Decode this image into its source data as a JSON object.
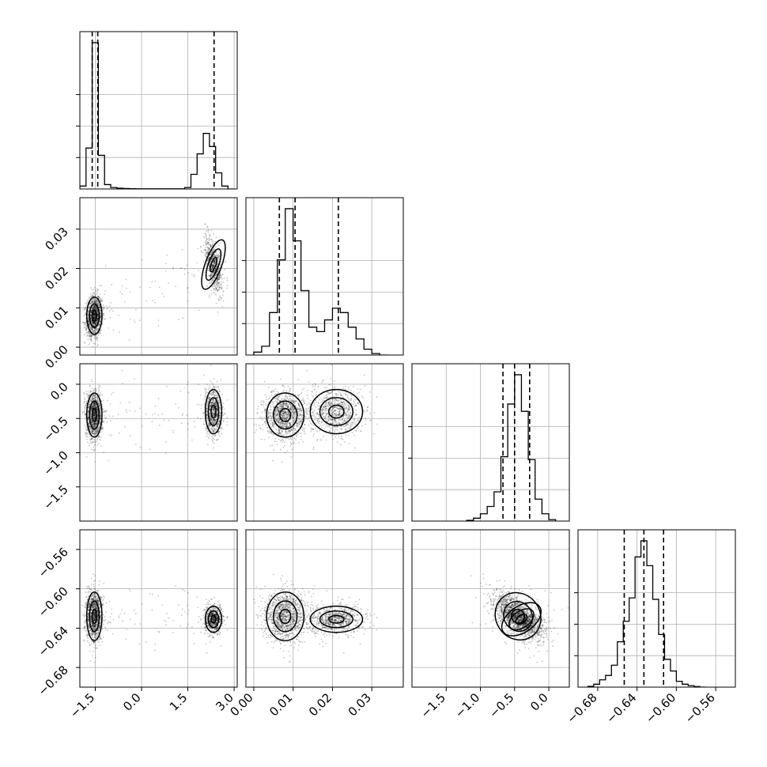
{
  "chart_data": {
    "type": "corner",
    "parameters": 4,
    "quantile_lines": "dashed",
    "grid": true,
    "params": [
      {
        "range": [
          -2.0,
          3.1
        ],
        "ticks": [
          -1.5,
          0.0,
          1.5,
          3.0
        ],
        "tick_labels": [
          "−1.5",
          "0.0",
          "1.5",
          "3.0"
        ],
        "quantiles": [
          -1.6,
          -1.42,
          2.35
        ],
        "hist": {
          "edges": [
            -2.0,
            -1.8,
            -1.6,
            -1.4,
            -1.2,
            -1.0,
            -0.8,
            -0.6,
            -0.4,
            -0.2,
            0.0,
            1.4,
            1.6,
            1.8,
            2.0,
            2.2,
            2.4,
            2.6,
            2.8,
            3.0
          ],
          "values": [
            0.02,
            0.28,
            1.0,
            0.23,
            0.03,
            0.01,
            0.005,
            0.003,
            0.002,
            0.001,
            0.001,
            0.01,
            0.1,
            0.24,
            0.38,
            0.29,
            0.11,
            0.02,
            0.0
          ]
        }
      },
      {
        "range": [
          -0.002,
          0.038
        ],
        "ticks": [
          0.0,
          0.01,
          0.02,
          0.03
        ],
        "tick_labels": [
          "0.00",
          "0.01",
          "0.02",
          "0.03"
        ],
        "quantiles": [
          0.0065,
          0.0105,
          0.0215
        ],
        "hist": {
          "edges": [
            0.0,
            0.002,
            0.004,
            0.006,
            0.008,
            0.01,
            0.012,
            0.014,
            0.016,
            0.018,
            0.02,
            0.022,
            0.024,
            0.026,
            0.028,
            0.03,
            0.032,
            0.034
          ],
          "values": [
            0.02,
            0.06,
            0.29,
            0.65,
            1.0,
            0.78,
            0.44,
            0.19,
            0.16,
            0.24,
            0.32,
            0.29,
            0.19,
            0.11,
            0.04,
            0.01,
            0.0
          ]
        }
      },
      {
        "range": [
          -2.0,
          0.3
        ],
        "ticks": [
          -1.5,
          -1.0,
          -0.5,
          0.0
        ],
        "tick_labels": [
          "−1.5",
          "−1.0",
          "−0.5",
          "0.0"
        ],
        "quantiles": [
          -0.67,
          -0.5,
          -0.28
        ],
        "hist": {
          "edges": [
            -1.2,
            -1.1,
            -1.0,
            -0.9,
            -0.8,
            -0.7,
            -0.6,
            -0.5,
            -0.4,
            -0.3,
            -0.2,
            -0.1,
            0.0,
            0.1
          ],
          "values": [
            0.005,
            0.02,
            0.05,
            0.1,
            0.2,
            0.44,
            0.8,
            1.0,
            0.75,
            0.42,
            0.15,
            0.05,
            0.01
          ]
        }
      },
      {
        "range": [
          -0.7,
          -0.54
        ],
        "ticks": [
          -0.68,
          -0.64,
          -0.6,
          -0.56
        ],
        "tick_labels": [
          "−0.68",
          "−0.64",
          "−0.60",
          "−0.56"
        ],
        "quantiles": [
          -0.653,
          -0.633,
          -0.613
        ],
        "hist": {
          "edges": [
            -0.69,
            -0.684,
            -0.678,
            -0.672,
            -0.666,
            -0.66,
            -0.654,
            -0.648,
            -0.642,
            -0.636,
            -0.63,
            -0.624,
            -0.618,
            -0.612,
            -0.606,
            -0.6,
            -0.594,
            -0.588,
            -0.582,
            -0.576,
            -0.57
          ],
          "values": [
            0.005,
            0.02,
            0.05,
            0.08,
            0.15,
            0.31,
            0.45,
            0.61,
            0.89,
            1.0,
            0.83,
            0.6,
            0.36,
            0.19,
            0.11,
            0.04,
            0.02,
            0.01,
            0.004,
            0.0
          ]
        }
      }
    ],
    "ylim_left_ticks": {
      "row1": [
        "0.00",
        "0.01",
        "0.02",
        "0.03"
      ],
      "row2": [
        "−1.5",
        "−1.0",
        "−0.5",
        "0.0"
      ],
      "row3": [
        "−0.68",
        "−0.64",
        "−0.60",
        "−0.56"
      ]
    },
    "modes": [
      {
        "p0": -1.53,
        "p1": 0.008,
        "p2": -0.45,
        "p3": -0.628,
        "s0": 0.13,
        "s1": 0.0025,
        "s2": 0.17,
        "s3": 0.013
      },
      {
        "p0": 2.33,
        "p1": 0.021,
        "p2": -0.4,
        "p3": -0.631,
        "s0": 0.14,
        "s1": 0.0035,
        "s2": 0.17,
        "s3": 0.007
      }
    ]
  }
}
